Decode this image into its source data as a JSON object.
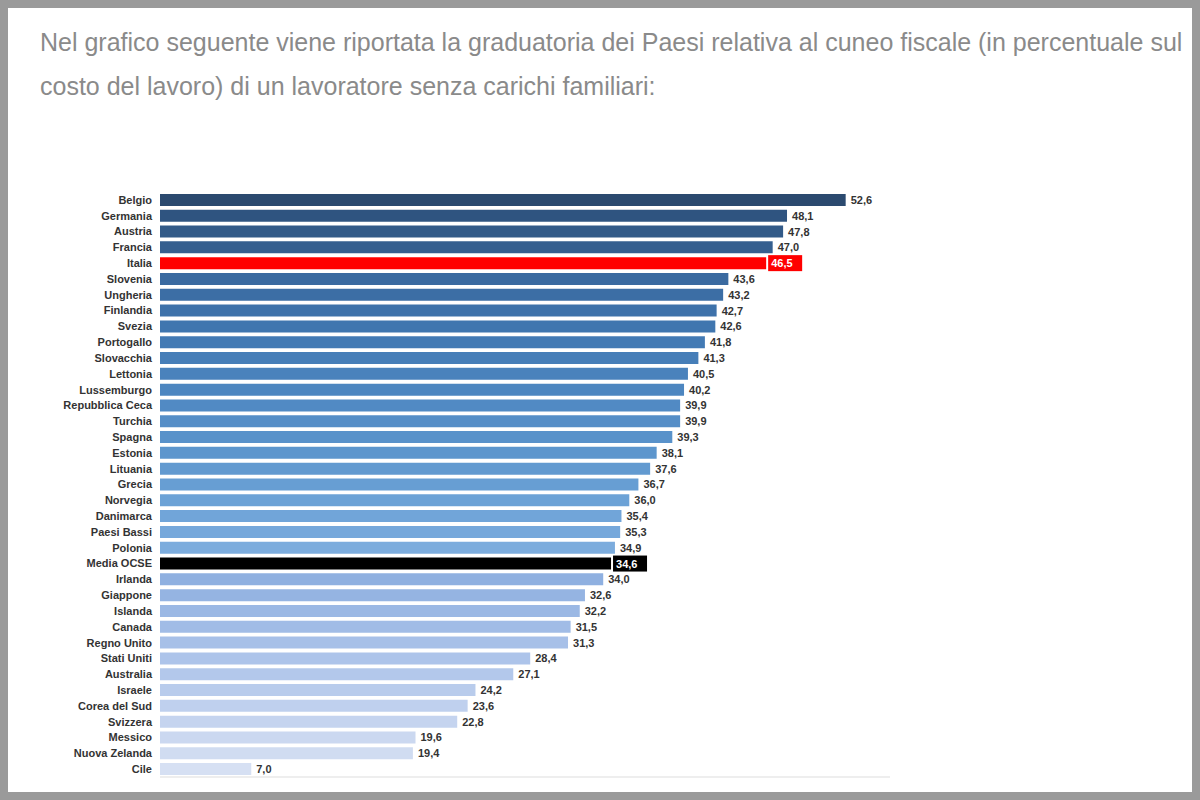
{
  "chart_data": {
    "type": "bar",
    "title": "Nel grafico seguente viene riportata la graduatoria dei Paesi relativa al cuneo fiscale (in percentuale sul costo del lavoro) di un lavoratore senza carichi familiari:",
    "orientation": "horizontal",
    "data_labels": true,
    "tick_labels": "y",
    "xlim": [
      0,
      56
    ],
    "categories": [
      "Belgio",
      "Germania",
      "Austria",
      "Francia",
      "Italia",
      "Slovenia",
      "Ungheria",
      "Finlandia",
      "Svezia",
      "Portogallo",
      "Slovacchia",
      "Lettonia",
      "Lussemburgo",
      "Repubblica Ceca",
      "Turchia",
      "Spagna",
      "Estonia",
      "Lituania",
      "Grecia",
      "Norvegia",
      "Danimarca",
      "Paesi Bassi",
      "Polonia",
      "Media OCSE",
      "Irlanda",
      "Giappone",
      "Islanda",
      "Canada",
      "Regno Unito",
      "Stati Uniti",
      "Australia",
      "Israele",
      "Corea del Sud",
      "Svizzera",
      "Messico",
      "Nuova Zelanda",
      "Cile"
    ],
    "values": [
      52.6,
      48.1,
      47.8,
      47.0,
      46.5,
      43.6,
      43.2,
      42.7,
      42.6,
      41.8,
      41.3,
      40.5,
      40.2,
      39.9,
      39.9,
      39.3,
      38.1,
      37.6,
      36.7,
      36.0,
      35.4,
      35.3,
      34.9,
      34.6,
      34.0,
      32.6,
      32.2,
      31.5,
      31.3,
      28.4,
      27.1,
      24.2,
      23.6,
      22.8,
      19.6,
      19.4,
      7.0
    ],
    "value_labels": [
      "52,6",
      "48,1",
      "47,8",
      "47,0",
      "46,5",
      "43,6",
      "43,2",
      "42,7",
      "42,6",
      "41,8",
      "41,3",
      "40,5",
      "40,2",
      "39,9",
      "39,9",
      "39,3",
      "38,1",
      "37,6",
      "36,7",
      "36,0",
      "35,4",
      "35,3",
      "34,9",
      "34,6",
      "34,0",
      "32,6",
      "32,2",
      "31,5",
      "31,3",
      "28,4",
      "27,1",
      "24,2",
      "23,6",
      "22,8",
      "19,6",
      "19,4",
      "7,0"
    ],
    "colors": [
      "#2b4a6f",
      "#2f5480",
      "#325a88",
      "#355f8f",
      "#ff0000",
      "#3a6aa0",
      "#3c6ea5",
      "#3e72aa",
      "#4076af",
      "#437ab4",
      "#467eb8",
      "#4a82bc",
      "#4d86c0",
      "#518ac4",
      "#558ec7",
      "#5992ca",
      "#5d96cd",
      "#629ad0",
      "#679ed3",
      "#6ca2d6",
      "#71a5d9",
      "#76a8db",
      "#7cacdd",
      "#000000",
      "#8fb0e0",
      "#95b4e2",
      "#9bb8e4",
      "#a1bce6",
      "#a7c0e8",
      "#adc4ea",
      "#b3c8eb",
      "#b9ccec",
      "#bfd0ee",
      "#c5d4ef",
      "#cbd8f0",
      "#d0dcf1",
      "#d6e0f3"
    ]
  }
}
